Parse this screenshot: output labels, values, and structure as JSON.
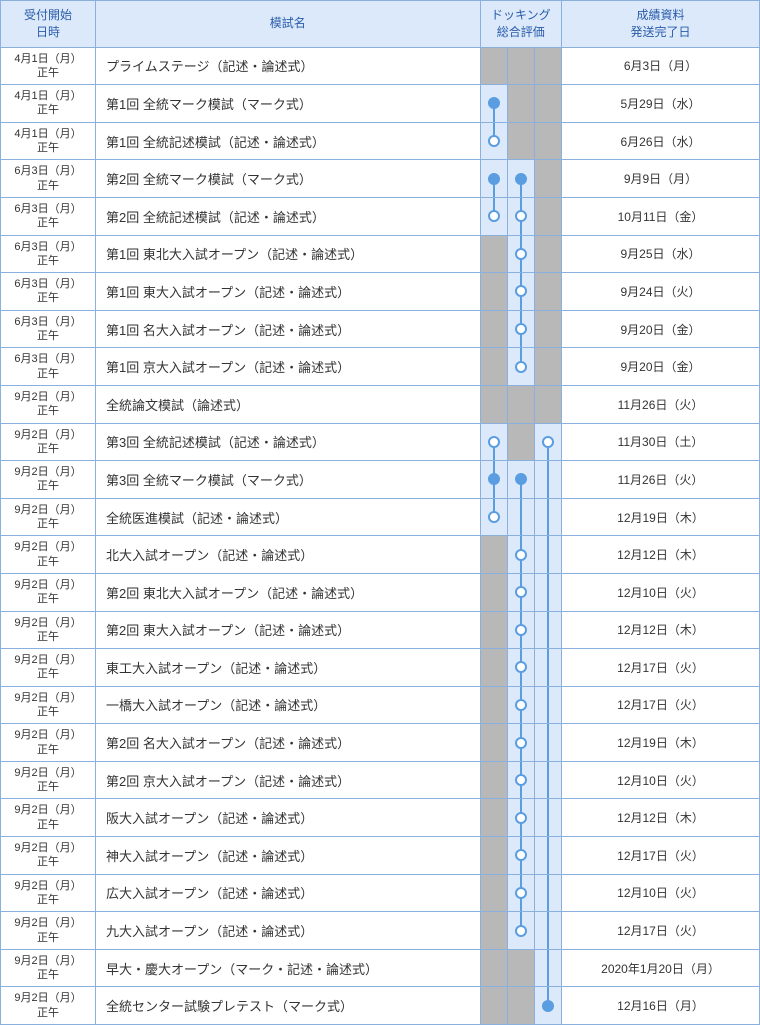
{
  "columns": {
    "date": "受付開始\n日時",
    "name": "模試名",
    "docking": "ドッキング\n総合評価",
    "result": "成績資料\n発送完了日"
  },
  "colors": {
    "header_bg": "#dbe9fb",
    "header_text": "#2a5caa",
    "border": "#8ab0de",
    "dock_gray": "#b8b8b8",
    "dock_blue": "#dbe9fb",
    "marker_stroke": "#5a9de0",
    "marker_fill": "#5a9de0"
  },
  "dockColumns": 3,
  "rows": [
    {
      "date1": "4月1日（月）",
      "date2": "正午",
      "name": "プライムステージ（記述・論述式）",
      "result": "6月3日（月）",
      "dock": [
        "gray",
        "gray",
        "gray"
      ]
    },
    {
      "date1": "4月1日（月）",
      "date2": "正午",
      "name": "第1回 全統マーク模試（マーク式）",
      "result": "5月29日（水）",
      "dock": [
        {
          "bg": "blue",
          "marker": "filled",
          "down": true
        },
        "gray",
        "gray"
      ]
    },
    {
      "date1": "4月1日（月）",
      "date2": "正午",
      "name": "第1回 全統記述模試（記述・論述式）",
      "result": "6月26日（水）",
      "dock": [
        {
          "bg": "blue",
          "marker": "open",
          "up": true
        },
        "gray",
        "gray"
      ]
    },
    {
      "date1": "6月3日（月）",
      "date2": "正午",
      "name": "第2回 全統マーク模試（マーク式）",
      "result": "9月9日（月）",
      "dock": [
        {
          "bg": "blue",
          "marker": "filled",
          "down": true
        },
        {
          "bg": "blue",
          "marker": "filled",
          "down": true
        },
        "gray"
      ]
    },
    {
      "date1": "6月3日（月）",
      "date2": "正午",
      "name": "第2回 全統記述模試（記述・論述式）",
      "result": "10月11日（金）",
      "dock": [
        {
          "bg": "blue",
          "marker": "open",
          "up": true
        },
        {
          "bg": "blue",
          "marker": "open",
          "up": true,
          "down": true
        },
        "gray"
      ]
    },
    {
      "date1": "6月3日（月）",
      "date2": "正午",
      "name": "第1回 東北大入試オープン（記述・論述式）",
      "result": "9月25日（水）",
      "dock": [
        "gray",
        {
          "bg": "blue",
          "marker": "open",
          "up": true,
          "down": true
        },
        "gray"
      ]
    },
    {
      "date1": "6月3日（月）",
      "date2": "正午",
      "name": "第1回 東大入試オープン（記述・論述式）",
      "result": "9月24日（火）",
      "dock": [
        "gray",
        {
          "bg": "blue",
          "marker": "open",
          "up": true,
          "down": true
        },
        "gray"
      ]
    },
    {
      "date1": "6月3日（月）",
      "date2": "正午",
      "name": "第1回 名大入試オープン（記述・論述式）",
      "result": "9月20日（金）",
      "dock": [
        "gray",
        {
          "bg": "blue",
          "marker": "open",
          "up": true,
          "down": true
        },
        "gray"
      ]
    },
    {
      "date1": "6月3日（月）",
      "date2": "正午",
      "name": "第1回 京大入試オープン（記述・論述式）",
      "result": "9月20日（金）",
      "dock": [
        "gray",
        {
          "bg": "blue",
          "marker": "open",
          "up": true
        },
        "gray"
      ]
    },
    {
      "date1": "9月2日（月）",
      "date2": "正午",
      "name": "全統論文模試（論述式）",
      "result": "11月26日（火）",
      "dock": [
        "gray",
        "gray",
        "gray"
      ]
    },
    {
      "date1": "9月2日（月）",
      "date2": "正午",
      "name": "第3回 全統記述模試（記述・論述式）",
      "result": "11月30日（土）",
      "dock": [
        {
          "bg": "blue",
          "marker": "open",
          "down": true
        },
        "gray",
        {
          "bg": "blue",
          "marker": "open",
          "down": true
        }
      ]
    },
    {
      "date1": "9月2日（月）",
      "date2": "正午",
      "name": "第3回 全統マーク模試（マーク式）",
      "result": "11月26日（火）",
      "dock": [
        {
          "bg": "blue",
          "marker": "filled",
          "up": true,
          "down": true
        },
        {
          "bg": "blue",
          "marker": "filled",
          "down": true
        },
        {
          "bg": "blue",
          "up": true,
          "down": true
        }
      ]
    },
    {
      "date1": "9月2日（月）",
      "date2": "正午",
      "name": "全統医進模試（記述・論述式）",
      "result": "12月19日（木）",
      "dock": [
        {
          "bg": "blue",
          "marker": "open",
          "up": true
        },
        {
          "bg": "blue",
          "up": true,
          "down": true
        },
        {
          "bg": "blue",
          "up": true,
          "down": true
        }
      ]
    },
    {
      "date1": "9月2日（月）",
      "date2": "正午",
      "name": "北大入試オープン（記述・論述式）",
      "result": "12月12日（木）",
      "dock": [
        "gray",
        {
          "bg": "blue",
          "marker": "open",
          "up": true,
          "down": true
        },
        {
          "bg": "blue",
          "up": true,
          "down": true
        }
      ]
    },
    {
      "date1": "9月2日（月）",
      "date2": "正午",
      "name": "第2回 東北大入試オープン（記述・論述式）",
      "result": "12月10日（火）",
      "dock": [
        "gray",
        {
          "bg": "blue",
          "marker": "open",
          "up": true,
          "down": true
        },
        {
          "bg": "blue",
          "up": true,
          "down": true
        }
      ]
    },
    {
      "date1": "9月2日（月）",
      "date2": "正午",
      "name": "第2回 東大入試オープン（記述・論述式）",
      "result": "12月12日（木）",
      "dock": [
        "gray",
        {
          "bg": "blue",
          "marker": "open",
          "up": true,
          "down": true
        },
        {
          "bg": "blue",
          "up": true,
          "down": true
        }
      ]
    },
    {
      "date1": "9月2日（月）",
      "date2": "正午",
      "name": "東工大入試オープン（記述・論述式）",
      "result": "12月17日（火）",
      "dock": [
        "gray",
        {
          "bg": "blue",
          "marker": "open",
          "up": true,
          "down": true
        },
        {
          "bg": "blue",
          "up": true,
          "down": true
        }
      ]
    },
    {
      "date1": "9月2日（月）",
      "date2": "正午",
      "name": "一橋大入試オープン（記述・論述式）",
      "result": "12月17日（火）",
      "dock": [
        "gray",
        {
          "bg": "blue",
          "marker": "open",
          "up": true,
          "down": true
        },
        {
          "bg": "blue",
          "up": true,
          "down": true
        }
      ]
    },
    {
      "date1": "9月2日（月）",
      "date2": "正午",
      "name": "第2回 名大入試オープン（記述・論述式）",
      "result": "12月19日（木）",
      "dock": [
        "gray",
        {
          "bg": "blue",
          "marker": "open",
          "up": true,
          "down": true
        },
        {
          "bg": "blue",
          "up": true,
          "down": true
        }
      ]
    },
    {
      "date1": "9月2日（月）",
      "date2": "正午",
      "name": "第2回 京大入試オープン（記述・論述式）",
      "result": "12月10日（火）",
      "dock": [
        "gray",
        {
          "bg": "blue",
          "marker": "open",
          "up": true,
          "down": true
        },
        {
          "bg": "blue",
          "up": true,
          "down": true
        }
      ]
    },
    {
      "date1": "9月2日（月）",
      "date2": "正午",
      "name": "阪大入試オープン（記述・論述式）",
      "result": "12月12日（木）",
      "dock": [
        "gray",
        {
          "bg": "blue",
          "marker": "open",
          "up": true,
          "down": true
        },
        {
          "bg": "blue",
          "up": true,
          "down": true
        }
      ]
    },
    {
      "date1": "9月2日（月）",
      "date2": "正午",
      "name": "神大入試オープン（記述・論述式）",
      "result": "12月17日（火）",
      "dock": [
        "gray",
        {
          "bg": "blue",
          "marker": "open",
          "up": true,
          "down": true
        },
        {
          "bg": "blue",
          "up": true,
          "down": true
        }
      ]
    },
    {
      "date1": "9月2日（月）",
      "date2": "正午",
      "name": "広大入試オープン（記述・論述式）",
      "result": "12月10日（火）",
      "dock": [
        "gray",
        {
          "bg": "blue",
          "marker": "open",
          "up": true,
          "down": true
        },
        {
          "bg": "blue",
          "up": true,
          "down": true
        }
      ]
    },
    {
      "date1": "9月2日（月）",
      "date2": "正午",
      "name": "九大入試オープン（記述・論述式）",
      "result": "12月17日（火）",
      "dock": [
        "gray",
        {
          "bg": "blue",
          "marker": "open",
          "up": true
        },
        {
          "bg": "blue",
          "up": true,
          "down": true
        }
      ]
    },
    {
      "date1": "9月2日（月）",
      "date2": "正午",
      "name": "早大・慶大オープン（マーク・記述・論述式）",
      "result": "2020年1月20日（月）",
      "dock": [
        "gray",
        "gray",
        {
          "bg": "blue",
          "up": true,
          "down": true
        }
      ]
    },
    {
      "date1": "9月2日（月）",
      "date2": "正午",
      "name": "全統センター試験プレテスト（マーク式）",
      "result": "12月16日（月）",
      "dock": [
        "gray",
        "gray",
        {
          "bg": "blue",
          "marker": "filled",
          "up": true
        }
      ]
    }
  ]
}
